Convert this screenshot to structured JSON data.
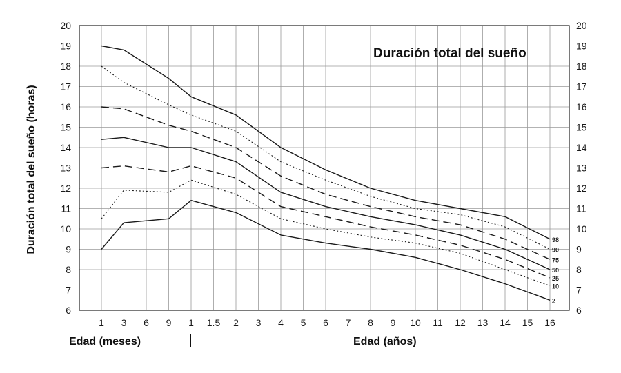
{
  "chart_data": {
    "type": "line",
    "title": "Duración total del sueño",
    "ylabel": "Duración total del sueño (horas)",
    "xlabel_months": "Edad (meses)",
    "xlabel_years": "Edad (años)",
    "x_ticks": [
      "1",
      "3",
      "6",
      "9",
      "1",
      "1.5",
      "2",
      "3",
      "4",
      "5",
      "6",
      "7",
      "8",
      "9",
      "10",
      "11",
      "12",
      "13",
      "14",
      "15",
      "16"
    ],
    "y_ticks": [
      "6",
      "7",
      "8",
      "9",
      "10",
      "11",
      "12",
      "13",
      "14",
      "15",
      "16",
      "17",
      "18",
      "19",
      "20"
    ],
    "ylim": [
      6,
      20
    ],
    "grid": true,
    "series": [
      {
        "name": "98",
        "style": "solid",
        "points": [
          [
            0,
            19.0
          ],
          [
            1,
            18.8
          ],
          [
            3,
            17.4
          ],
          [
            4,
            16.5
          ],
          [
            6,
            15.6
          ],
          [
            8,
            14.0
          ],
          [
            10,
            12.9
          ],
          [
            12,
            12.0
          ],
          [
            14,
            11.4
          ],
          [
            16,
            11.0
          ],
          [
            18,
            10.6
          ],
          [
            20,
            9.5
          ]
        ]
      },
      {
        "name": "90",
        "style": "dotted",
        "points": [
          [
            0,
            18.0
          ],
          [
            1,
            17.2
          ],
          [
            3,
            16.1
          ],
          [
            4,
            15.6
          ],
          [
            6,
            14.8
          ],
          [
            8,
            13.3
          ],
          [
            10,
            12.4
          ],
          [
            12,
            11.6
          ],
          [
            14,
            11.0
          ],
          [
            16,
            10.7
          ],
          [
            18,
            10.1
          ],
          [
            20,
            9.0
          ]
        ]
      },
      {
        "name": "75",
        "style": "dashed",
        "points": [
          [
            0,
            16.0
          ],
          [
            1,
            15.9
          ],
          [
            3,
            15.1
          ],
          [
            4,
            14.8
          ],
          [
            6,
            14.0
          ],
          [
            8,
            12.6
          ],
          [
            10,
            11.7
          ],
          [
            12,
            11.1
          ],
          [
            14,
            10.6
          ],
          [
            16,
            10.2
          ],
          [
            18,
            9.5
          ],
          [
            20,
            8.5
          ]
        ]
      },
      {
        "name": "50",
        "style": "solid",
        "points": [
          [
            0,
            14.4
          ],
          [
            1,
            14.5
          ],
          [
            3,
            14.0
          ],
          [
            4,
            14.0
          ],
          [
            6,
            13.3
          ],
          [
            8,
            11.8
          ],
          [
            10,
            11.1
          ],
          [
            12,
            10.6
          ],
          [
            14,
            10.2
          ],
          [
            16,
            9.7
          ],
          [
            18,
            9.0
          ],
          [
            20,
            8.0
          ]
        ]
      },
      {
        "name": "25",
        "style": "dashed",
        "points": [
          [
            0,
            13.0
          ],
          [
            1,
            13.1
          ],
          [
            3,
            12.8
          ],
          [
            4,
            13.1
          ],
          [
            6,
            12.5
          ],
          [
            8,
            11.1
          ],
          [
            10,
            10.6
          ],
          [
            12,
            10.1
          ],
          [
            14,
            9.7
          ],
          [
            16,
            9.2
          ],
          [
            18,
            8.5
          ],
          [
            20,
            7.6
          ]
        ]
      },
      {
        "name": "10",
        "style": "dotted",
        "points": [
          [
            0,
            10.5
          ],
          [
            1,
            11.9
          ],
          [
            3,
            11.8
          ],
          [
            4,
            12.4
          ],
          [
            6,
            11.7
          ],
          [
            8,
            10.5
          ],
          [
            10,
            10.0
          ],
          [
            12,
            9.6
          ],
          [
            14,
            9.3
          ],
          [
            16,
            8.8
          ],
          [
            18,
            8.0
          ],
          [
            20,
            7.2
          ]
        ]
      },
      {
        "name": "2",
        "style": "solid",
        "points": [
          [
            0,
            9.0
          ],
          [
            1,
            10.3
          ],
          [
            3,
            10.5
          ],
          [
            4,
            11.4
          ],
          [
            6,
            10.8
          ],
          [
            8,
            9.7
          ],
          [
            10,
            9.3
          ],
          [
            12,
            9.0
          ],
          [
            14,
            8.6
          ],
          [
            16,
            8.0
          ],
          [
            18,
            7.3
          ],
          [
            20,
            6.5
          ]
        ]
      }
    ]
  }
}
